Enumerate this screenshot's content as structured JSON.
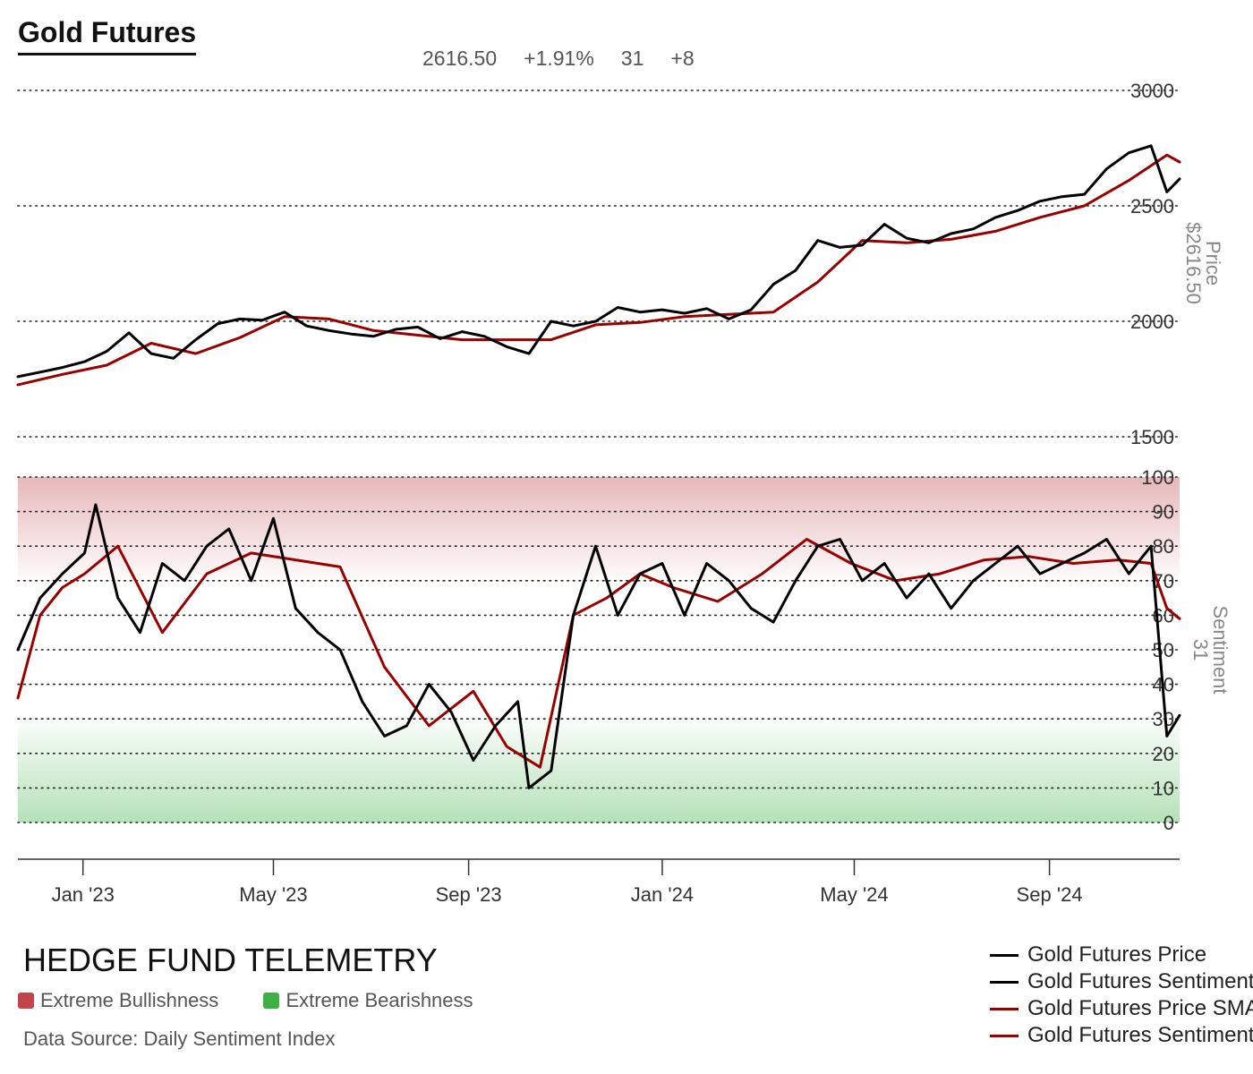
{
  "header": {
    "title": "Gold Futures",
    "price": "2616.50",
    "change_pct": "+1.91%",
    "sentiment": "31",
    "sentiment_change": "+8"
  },
  "footer": {
    "brand": "HEDGE FUND TELEMETRY",
    "zone_bull": "Extreme Bullishness",
    "zone_bear": "Extreme Bearishness",
    "source": "Data Source: Daily Sentiment Index"
  },
  "colors": {
    "price_line": "#000000",
    "sma_line": "#990000",
    "bull_zone": "#c0444a",
    "bear_zone": "#3cb043"
  },
  "chart_data": [
    {
      "type": "line",
      "panel": "price",
      "right_label": "Price",
      "right_value": "$2616.50",
      "ylim": [
        1500,
        3000
      ],
      "yticks": [
        1500,
        2000,
        2500,
        3000
      ],
      "x_ticks": [
        "Jan '23",
        "May '23",
        "Sep '23",
        "Jan '24",
        "May '24",
        "Sep '24"
      ],
      "x_range": [
        "2022-11-21",
        "2024-11-22"
      ],
      "grid": true,
      "series": [
        {
          "name": "Gold Futures Price",
          "color": "#000000",
          "x": [
            "2022-11-21",
            "2022-12-05",
            "2022-12-19",
            "2023-01-02",
            "2023-01-16",
            "2023-01-30",
            "2023-02-13",
            "2023-02-27",
            "2023-03-13",
            "2023-03-27",
            "2023-04-10",
            "2023-04-24",
            "2023-05-08",
            "2023-05-22",
            "2023-06-05",
            "2023-06-19",
            "2023-07-03",
            "2023-07-17",
            "2023-07-31",
            "2023-08-14",
            "2023-08-28",
            "2023-09-11",
            "2023-09-25",
            "2023-10-09",
            "2023-10-23",
            "2023-11-06",
            "2023-11-20",
            "2023-12-04",
            "2023-12-18",
            "2024-01-01",
            "2024-01-15",
            "2024-01-29",
            "2024-02-12",
            "2024-02-26",
            "2024-03-11",
            "2024-03-25",
            "2024-04-08",
            "2024-04-22",
            "2024-05-06",
            "2024-05-20",
            "2024-06-03",
            "2024-06-17",
            "2024-07-01",
            "2024-07-15",
            "2024-07-29",
            "2024-08-12",
            "2024-08-26",
            "2024-09-09",
            "2024-09-23",
            "2024-10-07",
            "2024-10-21",
            "2024-11-04",
            "2024-11-14",
            "2024-11-22"
          ],
          "values": [
            1760,
            1780,
            1800,
            1825,
            1870,
            1950,
            1860,
            1840,
            1920,
            1990,
            2010,
            2005,
            2040,
            1980,
            1960,
            1945,
            1935,
            1965,
            1975,
            1925,
            1955,
            1935,
            1890,
            1860,
            2000,
            1980,
            2000,
            2060,
            2040,
            2050,
            2035,
            2055,
            2010,
            2050,
            2160,
            2220,
            2350,
            2320,
            2330,
            2420,
            2360,
            2340,
            2380,
            2400,
            2450,
            2480,
            2520,
            2540,
            2550,
            2660,
            2730,
            2760,
            2560,
            2616.5
          ]
        },
        {
          "name": "Gold Futures Price SMA",
          "color": "#990000",
          "x": [
            "2022-11-21",
            "2022-12-19",
            "2023-01-16",
            "2023-02-13",
            "2023-03-13",
            "2023-04-10",
            "2023-05-08",
            "2023-06-05",
            "2023-07-03",
            "2023-07-31",
            "2023-08-28",
            "2023-09-25",
            "2023-10-23",
            "2023-11-20",
            "2023-12-18",
            "2024-01-15",
            "2024-02-12",
            "2024-03-11",
            "2024-04-08",
            "2024-05-06",
            "2024-06-03",
            "2024-07-01",
            "2024-07-29",
            "2024-08-26",
            "2024-09-23",
            "2024-10-21",
            "2024-11-14",
            "2024-11-22"
          ],
          "values": [
            1725,
            1770,
            1810,
            1905,
            1860,
            1930,
            2020,
            2010,
            1960,
            1940,
            1920,
            1920,
            1920,
            1985,
            1995,
            2020,
            2030,
            2040,
            2170,
            2350,
            2340,
            2355,
            2390,
            2450,
            2500,
            2610,
            2720,
            2690
          ]
        }
      ]
    },
    {
      "type": "line",
      "panel": "sentiment",
      "right_label": "Sentiment",
      "right_value": "31",
      "ylim": [
        0,
        100
      ],
      "yticks": [
        0,
        10,
        20,
        30,
        40,
        50,
        60,
        70,
        80,
        90,
        100
      ],
      "grid": true,
      "bands": [
        {
          "from": 70,
          "to": 100,
          "label": "Extreme Bullishness"
        },
        {
          "from": 0,
          "to": 30,
          "label": "Extreme Bearishness"
        }
      ],
      "series": [
        {
          "name": "Gold Futures Sentiment",
          "color": "#000000",
          "x": [
            "2022-11-21",
            "2022-12-05",
            "2022-12-19",
            "2023-01-02",
            "2023-01-09",
            "2023-01-23",
            "2023-02-06",
            "2023-02-20",
            "2023-03-06",
            "2023-03-20",
            "2023-04-03",
            "2023-04-17",
            "2023-05-01",
            "2023-05-15",
            "2023-05-29",
            "2023-06-12",
            "2023-06-26",
            "2023-07-10",
            "2023-07-24",
            "2023-08-07",
            "2023-08-21",
            "2023-09-04",
            "2023-09-18",
            "2023-10-02",
            "2023-10-09",
            "2023-10-23",
            "2023-11-06",
            "2023-11-20",
            "2023-12-04",
            "2023-12-18",
            "2024-01-01",
            "2024-01-15",
            "2024-01-29",
            "2024-02-12",
            "2024-02-26",
            "2024-03-11",
            "2024-03-25",
            "2024-04-08",
            "2024-04-22",
            "2024-05-06",
            "2024-05-20",
            "2024-06-03",
            "2024-06-17",
            "2024-07-01",
            "2024-07-15",
            "2024-07-29",
            "2024-08-12",
            "2024-08-26",
            "2024-09-09",
            "2024-09-23",
            "2024-10-07",
            "2024-10-21",
            "2024-11-04",
            "2024-11-14",
            "2024-11-22"
          ],
          "values": [
            50,
            65,
            72,
            78,
            92,
            65,
            55,
            75,
            70,
            80,
            85,
            70,
            88,
            62,
            55,
            50,
            35,
            25,
            28,
            40,
            32,
            18,
            28,
            35,
            10,
            15,
            60,
            80,
            60,
            72,
            75,
            60,
            75,
            70,
            62,
            58,
            70,
            80,
            82,
            70,
            75,
            65,
            72,
            62,
            70,
            75,
            80,
            72,
            75,
            78,
            82,
            72,
            80,
            25,
            31
          ]
        },
        {
          "name": "Gold Futures Sentiment SMA",
          "color": "#990000",
          "x": [
            "2022-11-21",
            "2022-12-05",
            "2022-12-19",
            "2023-01-02",
            "2023-01-23",
            "2023-02-20",
            "2023-03-20",
            "2023-04-17",
            "2023-05-15",
            "2023-06-12",
            "2023-07-10",
            "2023-08-07",
            "2023-09-04",
            "2023-09-25",
            "2023-10-16",
            "2023-11-06",
            "2023-11-27",
            "2023-12-18",
            "2024-01-08",
            "2024-02-05",
            "2024-03-04",
            "2024-04-01",
            "2024-04-29",
            "2024-05-27",
            "2024-06-24",
            "2024-07-22",
            "2024-08-19",
            "2024-09-16",
            "2024-10-14",
            "2024-11-04",
            "2024-11-14",
            "2024-11-22"
          ],
          "values": [
            36,
            60,
            68,
            72,
            80,
            55,
            72,
            78,
            76,
            74,
            45,
            28,
            38,
            22,
            16,
            60,
            65,
            72,
            68,
            64,
            72,
            82,
            75,
            70,
            72,
            76,
            77,
            75,
            76,
            75,
            62,
            59
          ]
        }
      ]
    }
  ]
}
